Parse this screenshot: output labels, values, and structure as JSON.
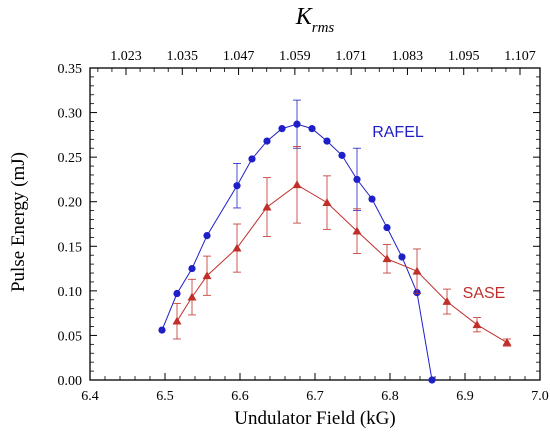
{
  "chart_data": {
    "type": "line",
    "xlabel": "Undulator Field (kG)",
    "ylabel": "Pulse Energy (mJ)",
    "x2label_main": "K",
    "x2label_sub": "rms",
    "xlim": [
      6.4,
      7.0
    ],
    "ylim": [
      0.0,
      0.35
    ],
    "x_ticks": [
      "6.4",
      "6.5",
      "6.6",
      "6.7",
      "6.8",
      "6.9",
      "7.0"
    ],
    "y_ticks": [
      "0.00",
      "0.05",
      "0.10",
      "0.15",
      "0.20",
      "0.25",
      "0.30",
      "0.35"
    ],
    "top_ticks": [
      "1.023",
      "1.035",
      "1.047",
      "1.059",
      "1.071",
      "1.083",
      "1.095",
      "1.107"
    ],
    "grid": false,
    "series": [
      {
        "name": "RAFEL",
        "color": "#1f1fc8",
        "marker": "circle",
        "x": [
          6.496,
          6.516,
          6.536,
          6.556,
          6.596,
          6.616,
          6.636,
          6.656,
          6.676,
          6.696,
          6.716,
          6.736,
          6.756,
          6.776,
          6.796,
          6.816,
          6.836,
          6.856
        ],
        "y": [
          0.056,
          0.097,
          0.125,
          0.162,
          0.218,
          0.248,
          0.268,
          0.282,
          0.287,
          0.282,
          0.268,
          0.252,
          0.225,
          0.203,
          0.171,
          0.138,
          0.098,
          0.0
        ],
        "err": [
          0,
          0,
          0,
          0,
          0.025,
          0,
          0,
          0,
          0.027,
          0,
          0,
          0,
          0.035,
          0,
          0,
          0,
          0,
          0
        ]
      },
      {
        "name": "SASE",
        "color": "#c0302b",
        "marker": "triangle",
        "x": [
          6.516,
          6.536,
          6.556,
          6.596,
          6.636,
          6.676,
          6.716,
          6.756,
          6.796,
          6.836,
          6.876,
          6.916,
          6.956
        ],
        "y": [
          0.066,
          0.093,
          0.117,
          0.148,
          0.194,
          0.219,
          0.199,
          0.167,
          0.136,
          0.122,
          0.088,
          0.062,
          0.042
        ],
        "err": [
          0.02,
          0.02,
          0.022,
          0.027,
          0.033,
          0.043,
          0.03,
          0.025,
          0.016,
          0.025,
          0.014,
          0.008,
          0.004
        ]
      }
    ]
  }
}
